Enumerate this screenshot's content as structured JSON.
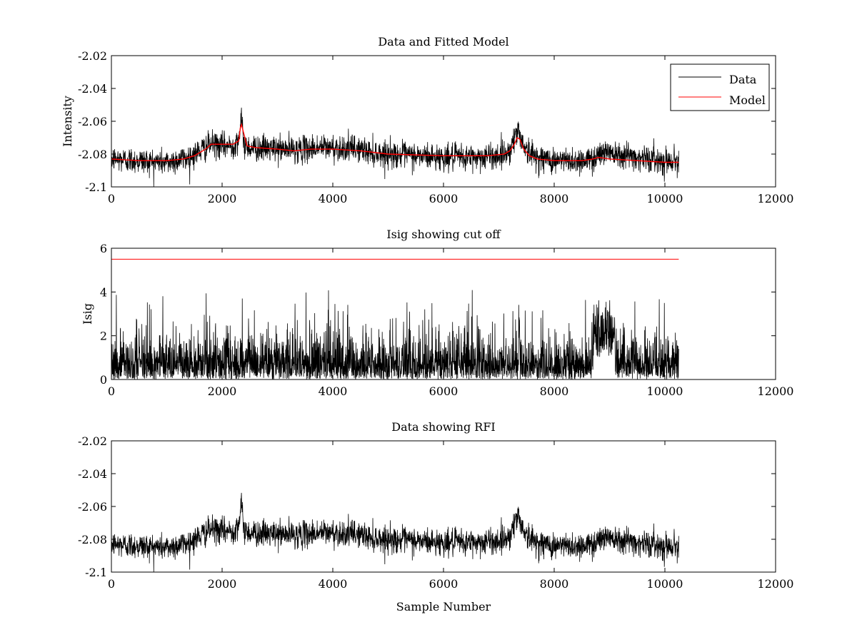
{
  "figure_background": "#ffffff",
  "colors": {
    "data": "#000000",
    "model": "#ff0000",
    "axes": "#000000"
  },
  "chart_data": [
    {
      "type": "line",
      "title": "Data and Fitted Model",
      "xlabel": "",
      "ylabel": "Intensity",
      "xlim": [
        0,
        12000
      ],
      "ylim": [
        -2.1,
        -2.02
      ],
      "xticks": [
        0,
        2000,
        4000,
        6000,
        8000,
        10000,
        12000
      ],
      "yticks": [
        -2.1,
        -2.08,
        -2.06,
        -2.04,
        -2.02
      ],
      "xtick_labels": [
        "0",
        "2000",
        "4000",
        "6000",
        "8000",
        "10000",
        "12000"
      ],
      "ytick_labels": [
        "-2.1",
        "-2.08",
        "-2.06",
        "-2.04",
        "-2.02"
      ],
      "grid": false,
      "legend": {
        "placement": "top-right",
        "entries": [
          "Data",
          "Model"
        ]
      },
      "series": [
        {
          "name": "Data",
          "color": "#000000",
          "noise_sigma": 0.004,
          "x": [
            0,
            1000,
            1400,
            1700,
            1800,
            2000,
            2200,
            2300,
            2350,
            2400,
            2500,
            3000,
            3500,
            3700,
            4000,
            4500,
            4700,
            5000,
            6000,
            6500,
            7000,
            7200,
            7300,
            7350,
            7400,
            7500,
            7700,
            8000,
            8500,
            8700,
            8800,
            9000,
            9500,
            10000,
            10250
          ],
          "values": [
            -2.083,
            -2.085,
            -2.082,
            -2.076,
            -2.074,
            -2.075,
            -2.075,
            -2.07,
            -2.06,
            -2.074,
            -2.076,
            -2.077,
            -2.077,
            -2.076,
            -2.076,
            -2.077,
            -2.079,
            -2.08,
            -2.082,
            -2.082,
            -2.081,
            -2.078,
            -2.068,
            -2.066,
            -2.07,
            -2.078,
            -2.082,
            -2.084,
            -2.084,
            -2.083,
            -2.08,
            -2.078,
            -2.082,
            -2.084,
            -2.084
          ]
        },
        {
          "name": "Model",
          "color": "#ff0000",
          "x": [
            0,
            500,
            1000,
            1300,
            1500,
            1700,
            1800,
            1900,
            2000,
            2200,
            2300,
            2330,
            2350,
            2380,
            2450,
            2600,
            3000,
            3300,
            3600,
            4000,
            4500,
            5000,
            6000,
            6800,
            7100,
            7200,
            7280,
            7330,
            7380,
            7450,
            7550,
            7700,
            8000,
            8500,
            8700,
            8800,
            9000,
            9500,
            10000,
            10250
          ],
          "values": [
            -2.083,
            -2.084,
            -2.084,
            -2.083,
            -2.081,
            -2.077,
            -2.074,
            -2.074,
            -2.074,
            -2.074,
            -2.072,
            -2.064,
            -2.062,
            -2.066,
            -2.075,
            -2.076,
            -2.077,
            -2.078,
            -2.077,
            -2.077,
            -2.078,
            -2.08,
            -2.081,
            -2.081,
            -2.08,
            -2.078,
            -2.074,
            -2.07,
            -2.071,
            -2.077,
            -2.081,
            -2.083,
            -2.084,
            -2.084,
            -2.083,
            -2.082,
            -2.083,
            -2.084,
            -2.085,
            -2.085
          ]
        }
      ]
    },
    {
      "type": "line",
      "title": "Isig showing cut off",
      "xlabel": "",
      "ylabel": "Isig",
      "xlim": [
        0,
        12000
      ],
      "ylim": [
        0,
        6
      ],
      "xticks": [
        0,
        2000,
        4000,
        6000,
        8000,
        10000,
        12000
      ],
      "yticks": [
        0,
        2,
        4,
        6
      ],
      "xtick_labels": [
        "0",
        "2000",
        "4000",
        "6000",
        "8000",
        "10000",
        "12000"
      ],
      "ytick_labels": [
        "0",
        "2",
        "4",
        "6"
      ],
      "grid": false,
      "series": [
        {
          "name": "Isig",
          "color": "#000000",
          "x_range": [
            0,
            10250
          ],
          "typical_max": 2.2,
          "peak_max": 4.1,
          "high_region": [
            8700,
            9100
          ],
          "high_region_min": 1.0
        },
        {
          "name": "cut off",
          "color": "#ff0000",
          "x": [
            0,
            10250
          ],
          "values": [
            5.5,
            5.5
          ]
        }
      ]
    },
    {
      "type": "line",
      "title": "Data showing RFI",
      "xlabel": "Sample Number",
      "ylabel": "",
      "xlim": [
        0,
        12000
      ],
      "ylim": [
        -2.1,
        -2.02
      ],
      "xticks": [
        0,
        2000,
        4000,
        6000,
        8000,
        10000,
        12000
      ],
      "yticks": [
        -2.1,
        -2.08,
        -2.06,
        -2.04,
        -2.02
      ],
      "xtick_labels": [
        "0",
        "2000",
        "4000",
        "6000",
        "8000",
        "10000",
        "12000"
      ],
      "ytick_labels": [
        "-2.1",
        "-2.08",
        "-2.06",
        "-2.04",
        "-2.02"
      ],
      "grid": false,
      "series": [
        {
          "name": "Data",
          "color": "#000000",
          "noise_sigma": 0.004,
          "x": [
            0,
            1000,
            1400,
            1700,
            1800,
            2000,
            2200,
            2300,
            2350,
            2400,
            2500,
            3000,
            3500,
            3700,
            4000,
            4500,
            4700,
            5000,
            6000,
            6500,
            7000,
            7200,
            7300,
            7350,
            7400,
            7500,
            7700,
            8000,
            8500,
            8700,
            8800,
            9000,
            9500,
            10000,
            10250
          ],
          "values": [
            -2.083,
            -2.085,
            -2.082,
            -2.076,
            -2.074,
            -2.075,
            -2.075,
            -2.07,
            -2.06,
            -2.074,
            -2.076,
            -2.077,
            -2.077,
            -2.076,
            -2.076,
            -2.077,
            -2.079,
            -2.08,
            -2.082,
            -2.082,
            -2.081,
            -2.078,
            -2.068,
            -2.066,
            -2.07,
            -2.078,
            -2.082,
            -2.084,
            -2.084,
            -2.083,
            -2.08,
            -2.078,
            -2.082,
            -2.084,
            -2.084
          ]
        }
      ]
    }
  ]
}
